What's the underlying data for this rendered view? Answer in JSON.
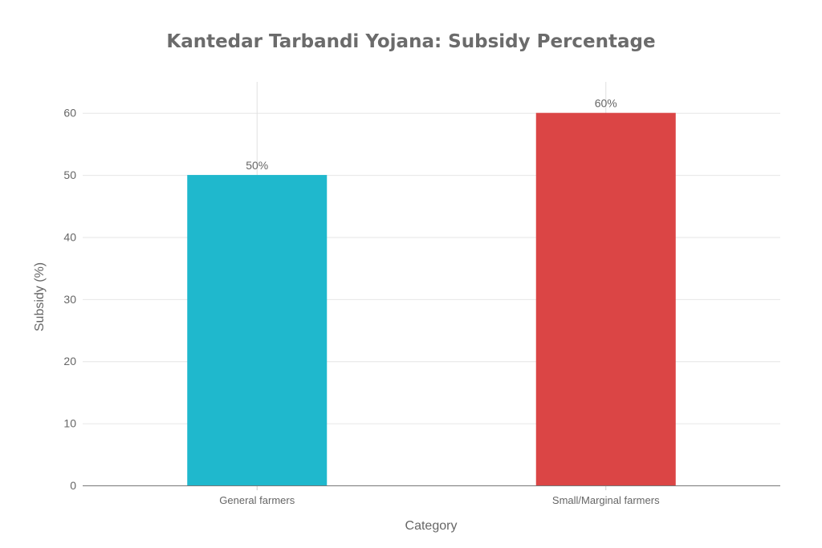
{
  "chart_data": {
    "type": "bar",
    "title": "Kantedar Tarbandi Yojana: Subsidy Percentage",
    "xlabel": "Category",
    "ylabel": "Subsidy (%)",
    "categories": [
      "General farmers",
      "Small/Marginal farmers"
    ],
    "values": [
      50,
      60
    ],
    "data_labels": [
      "50%",
      "60%"
    ],
    "colors": [
      "#1FB8CD",
      "#DB4545"
    ],
    "ylim": [
      0,
      65
    ],
    "yticks": [
      0,
      10,
      20,
      30,
      40,
      50,
      60
    ],
    "grid": true,
    "legend": "none"
  }
}
